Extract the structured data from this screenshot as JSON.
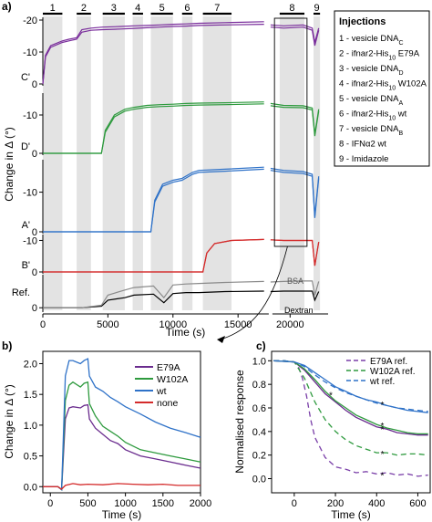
{
  "figure": {
    "panel_labels": {
      "a": "a)",
      "b": "b)",
      "c": "c)"
    }
  },
  "chart_data": [
    {
      "panel": "a",
      "type": "line",
      "xlabel": "Time (s)",
      "ylabel": "Change in Δ (°)",
      "xlim": [
        0,
        22500
      ],
      "x_axis_break": [
        17500,
        18500
      ],
      "xticks": [
        0,
        5000,
        10000,
        15000,
        20000
      ],
      "injection_numbers": [
        "1",
        "2",
        "3",
        "4",
        "5",
        "6",
        "7",
        "8",
        "9"
      ],
      "injection_windows": [
        [
          0,
          1500
        ],
        [
          2600,
          3700
        ],
        [
          4600,
          6300
        ],
        [
          6900,
          7700
        ],
        [
          8300,
          10000
        ],
        [
          10700,
          11500
        ],
        [
          12300,
          14500
        ],
        [
          19200,
          21100
        ],
        [
          21800,
          22300
        ]
      ],
      "injection_legend": {
        "title": "Injections",
        "items": [
          {
            "n": "1 - vesicle ",
            "main": "DNA",
            "sub": "C"
          },
          {
            "n": "2 - ifnar2-His",
            "main": "",
            "sub": "10",
            "tail": " E79A"
          },
          {
            "n": "3 - vesicle ",
            "main": "DNA",
            "sub": "D"
          },
          {
            "n": "4 - ifnar2-His",
            "main": "",
            "sub": "10",
            "tail": " W102A"
          },
          {
            "n": "5 - vesicle ",
            "main": "DNA",
            "sub": "A"
          },
          {
            "n": "6 - ifnar2-His",
            "main": "",
            "sub": "10",
            "tail": " wt"
          },
          {
            "n": "7 - vesicle ",
            "main": "DNA",
            "sub": "B"
          },
          {
            "n": "8 - IFNα2 wt",
            "main": "",
            "sub": ""
          },
          {
            "n": "9 - Imidazole",
            "main": "",
            "sub": ""
          }
        ]
      },
      "subplots": [
        {
          "label": "C'",
          "color": "#7a2e9c",
          "yticks": [
            0,
            -10,
            -20
          ],
          "x": [
            0,
            200,
            600,
            1500,
            2000,
            2600,
            3000,
            3700,
            4600,
            6000,
            7000,
            8000,
            9000,
            10000,
            11000,
            12000,
            14000,
            17000,
            18500,
            19500,
            21000,
            21700,
            21900,
            22200
          ],
          "y": [
            0,
            -9,
            -12,
            -13.5,
            -14,
            -14.5,
            -17,
            -17.5,
            -17.8,
            -18,
            -18.2,
            -18.3,
            -18.5,
            -18.7,
            -18.8,
            -19,
            -19.2,
            -19.5,
            -18.5,
            -18.2,
            -18.5,
            -17.5,
            -13,
            -17.5
          ],
          "y2": [
            0,
            -8.5,
            -11.5,
            -13,
            -13.5,
            -14,
            -16.2,
            -16.8,
            -17,
            -17.2,
            -17.4,
            -17.6,
            -17.8,
            -18,
            -18.1,
            -18.3,
            -18.5,
            -18.7,
            -17.8,
            -17.5,
            -17.8,
            -16.8,
            -12,
            -16.8
          ]
        },
        {
          "label": "D'",
          "color": "#2e9a3e",
          "yticks": [
            0,
            -10
          ],
          "x": [
            0,
            4500,
            4800,
            5500,
            6300,
            7000,
            8000,
            9000,
            10000,
            11000,
            12000,
            14000,
            17000,
            18500,
            19500,
            21000,
            21700,
            21900,
            22200
          ],
          "y": [
            0,
            0,
            -6,
            -10,
            -11.5,
            -12,
            -12.5,
            -12.7,
            -12.8,
            -13,
            -13.1,
            -13.2,
            -13.4,
            -13,
            -12.5,
            -12.4,
            -11.8,
            -5,
            -11.5
          ],
          "y2": [
            0,
            0,
            -5.5,
            -9.5,
            -11,
            -11.5,
            -12,
            -12.2,
            -12.3,
            -12.5,
            -12.6,
            -12.7,
            -12.9,
            -12.4,
            -12,
            -11.9,
            -11.3,
            -4.5,
            -11
          ]
        },
        {
          "label": "A'",
          "color": "#2f72c8",
          "yticks": [
            0,
            -10
          ],
          "x": [
            0,
            8300,
            8600,
            9200,
            10000,
            10700,
            11500,
            12000,
            14000,
            17000,
            18500,
            19500,
            21000,
            21700,
            21900,
            22200
          ],
          "y": [
            0,
            0,
            -8,
            -12,
            -13,
            -13.5,
            -15,
            -15.5,
            -15.8,
            -16.3,
            -16,
            -15.5,
            -15.2,
            -14.5,
            -4,
            -14
          ],
          "y2": [
            0,
            0,
            -7.5,
            -11.5,
            -12.5,
            -13,
            -14.5,
            -15,
            -15.3,
            -15.8,
            -15.5,
            -15,
            -14.7,
            -14,
            -3.5,
            -13.5
          ]
        },
        {
          "label": "B'",
          "color": "#d42b2b",
          "yticks": [
            0,
            -10
          ],
          "x": [
            0,
            12300,
            12600,
            13200,
            14500,
            17000,
            18500,
            19500,
            21000,
            21700,
            21900,
            22200
          ],
          "y": [
            0,
            0,
            -6,
            -9,
            -10,
            -10.3,
            -10.2,
            -10,
            -10,
            -10,
            -2,
            -9.5
          ],
          "y2": [
            0,
            0,
            -6,
            -9,
            -10,
            -10.3,
            -10.2,
            -10,
            -10,
            -10,
            -2,
            -9.5
          ]
        },
        {
          "label": "Ref.",
          "color": "#000000",
          "color2": "#8a8a8a",
          "yticks": [
            0
          ],
          "x": [
            0,
            3000,
            4500,
            5000,
            6300,
            7000,
            8500,
            9300,
            10000,
            11000,
            12000,
            14000,
            17000,
            18500,
            19500,
            21000,
            21700,
            21900,
            22200
          ],
          "y": [
            0,
            0,
            -0.3,
            -1.5,
            -2,
            -2.5,
            -2.7,
            -1,
            -2.8,
            -3,
            -3,
            -3.2,
            -3.3,
            -3.2,
            -3.3,
            -3.3,
            -3.3,
            -1.5,
            -3.2
          ],
          "y2": [
            0,
            0,
            -0.5,
            -2.5,
            -3.5,
            -4,
            -4.3,
            -2,
            -4.5,
            -4.7,
            -4.8,
            -5,
            -5.2,
            -5.1,
            -5.2,
            -5.3,
            -5.3,
            -2.5,
            -5.2
          ],
          "series_text": [
            "BSA",
            "Dextran"
          ]
        }
      ]
    },
    {
      "panel": "b",
      "type": "line",
      "xlabel": "Time (s)",
      "ylabel": "Change in Δ (°)",
      "xlim": [
        -100,
        2000
      ],
      "ylim": [
        -0.1,
        2.2
      ],
      "xticks": [
        0,
        500,
        1000,
        1500,
        2000
      ],
      "yticks": [
        0.0,
        0.5,
        1.0,
        1.5,
        2.0
      ],
      "legend_position": "right",
      "series": [
        {
          "name": "E79A",
          "color": "#6a2c8e",
          "x": [
            -100,
            100,
            150,
            200,
            250,
            300,
            400,
            450,
            500,
            520,
            600,
            700,
            800,
            900,
            1000,
            1200,
            1400,
            1600,
            1800,
            2000
          ],
          "y": [
            0,
            0,
            -0.05,
            1.1,
            1.28,
            1.3,
            1.28,
            1.32,
            1.33,
            1.1,
            0.95,
            0.85,
            0.75,
            0.7,
            0.6,
            0.5,
            0.45,
            0.4,
            0.35,
            0.3
          ]
        },
        {
          "name": "W102A",
          "color": "#2e9a3e",
          "x": [
            -100,
            100,
            150,
            200,
            250,
            300,
            400,
            450,
            500,
            520,
            600,
            700,
            800,
            900,
            1000,
            1200,
            1400,
            1600,
            1800,
            2000
          ],
          "y": [
            0,
            0,
            -0.05,
            1.4,
            1.65,
            1.7,
            1.62,
            1.68,
            1.7,
            1.35,
            1.15,
            0.98,
            0.9,
            0.82,
            0.72,
            0.6,
            0.55,
            0.5,
            0.45,
            0.4
          ]
        },
        {
          "name": "wt",
          "color": "#2f72c8",
          "x": [
            -100,
            100,
            150,
            200,
            250,
            300,
            400,
            450,
            500,
            520,
            600,
            700,
            800,
            900,
            1000,
            1200,
            1400,
            1600,
            1800,
            2000
          ],
          "y": [
            0,
            0,
            -0.05,
            1.8,
            2.05,
            2.05,
            2.0,
            2.05,
            2.08,
            1.8,
            1.62,
            1.55,
            1.45,
            1.38,
            1.3,
            1.18,
            1.05,
            0.95,
            0.88,
            0.8
          ]
        },
        {
          "name": "none",
          "color": "#d42b2b",
          "x": [
            -100,
            100,
            150,
            200,
            300,
            400,
            500,
            700,
            900,
            1100,
            1300,
            1500,
            1700,
            2000
          ],
          "y": [
            0,
            0,
            -0.04,
            0.02,
            0.05,
            0.03,
            0.04,
            0.03,
            0.05,
            0.04,
            0.03,
            0.04,
            0.02,
            0.02
          ]
        }
      ]
    },
    {
      "panel": "c",
      "type": "line",
      "xlabel": "Time (s)",
      "ylabel": "Normalised response",
      "xlim": [
        -110,
        660
      ],
      "ylim": [
        -0.12,
        1.08
      ],
      "xticks": [
        0,
        200,
        400,
        600
      ],
      "yticks": [
        0.0,
        0.2,
        0.4,
        0.6,
        0.8,
        1.0
      ],
      "legend_position": "top-right",
      "star_marker": "*",
      "series": [
        {
          "name": "E79A ref.",
          "color": "#7a3fa8",
          "dashed": true,
          "x": [
            -100,
            -50,
            0,
            20,
            40,
            60,
            80,
            100,
            150,
            200,
            250,
            300,
            350,
            400,
            450,
            500,
            550,
            600,
            650
          ],
          "y": [
            1.0,
            1.0,
            0.99,
            0.95,
            0.85,
            0.7,
            0.5,
            0.35,
            0.18,
            0.1,
            0.08,
            0.05,
            0.06,
            0.04,
            0.05,
            0.03,
            0.04,
            0.02,
            0.03
          ]
        },
        {
          "name": "W102A ref.",
          "color": "#2e9a3e",
          "dashed": true,
          "x": [
            -100,
            -50,
            0,
            50,
            100,
            150,
            200,
            250,
            300,
            350,
            400,
            450,
            500,
            550,
            600,
            650
          ],
          "y": [
            1.0,
            1.0,
            0.99,
            0.85,
            0.65,
            0.5,
            0.4,
            0.33,
            0.28,
            0.25,
            0.22,
            0.22,
            0.2,
            0.21,
            0.21,
            0.2
          ]
        },
        {
          "name": "wt ref.",
          "color": "#2f72c8",
          "dashed": true,
          "x": [
            -100,
            -50,
            0,
            50,
            100,
            150,
            200,
            250,
            300,
            350,
            400,
            450,
            500,
            550,
            600,
            650
          ],
          "y": [
            1.0,
            1.0,
            0.99,
            0.95,
            0.88,
            0.82,
            0.77,
            0.73,
            0.7,
            0.67,
            0.64,
            0.62,
            0.6,
            0.59,
            0.58,
            0.57
          ]
        },
        {
          "name": "",
          "color": "#6a2c8e",
          "dashed": false,
          "x": [
            -100,
            0,
            50,
            100,
            150,
            200,
            250,
            300,
            350,
            400,
            450,
            500,
            550,
            600,
            650
          ],
          "y": [
            1.0,
            0.99,
            0.92,
            0.82,
            0.72,
            0.65,
            0.58,
            0.52,
            0.48,
            0.44,
            0.42,
            0.39,
            0.38,
            0.37,
            0.37
          ]
        },
        {
          "name": "",
          "color": "#2e9a3e",
          "dashed": false,
          "x": [
            -100,
            0,
            50,
            100,
            150,
            200,
            250,
            300,
            350,
            400,
            450,
            500,
            550,
            600,
            650
          ],
          "y": [
            1.0,
            0.99,
            0.93,
            0.84,
            0.74,
            0.66,
            0.6,
            0.54,
            0.5,
            0.46,
            0.43,
            0.41,
            0.39,
            0.38,
            0.38
          ]
        },
        {
          "name": "",
          "color": "#2f72c8",
          "dashed": false,
          "x": [
            -100,
            0,
            50,
            100,
            150,
            200,
            250,
            300,
            350,
            400,
            450,
            500,
            550,
            600,
            650
          ],
          "y": [
            1.0,
            0.99,
            0.96,
            0.9,
            0.84,
            0.78,
            0.74,
            0.7,
            0.67,
            0.65,
            0.62,
            0.6,
            0.58,
            0.57,
            0.56
          ]
        }
      ]
    }
  ]
}
